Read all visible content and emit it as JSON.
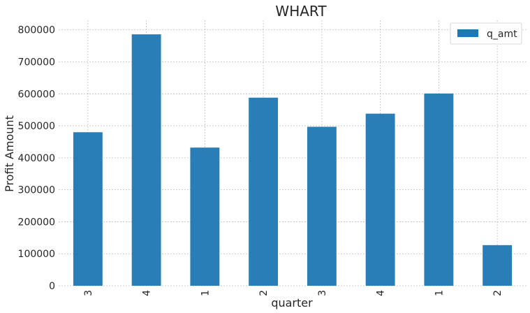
{
  "chart_data": {
    "type": "bar",
    "title": "WHART",
    "xlabel": "quarter",
    "ylabel": "Profit Amount",
    "categories": [
      "3",
      "4",
      "1",
      "2",
      "3",
      "4",
      "1",
      "2"
    ],
    "series": [
      {
        "name": "q_amt",
        "values": [
          480000,
          786000,
          432000,
          588000,
          497000,
          538000,
          601000,
          127000
        ]
      }
    ],
    "ylim": [
      0,
      830000
    ],
    "yticks": [
      "0",
      "100000",
      "200000",
      "300000",
      "400000",
      "500000",
      "600000",
      "700000",
      "800000"
    ],
    "grid": true,
    "legend_position": "top-right",
    "colors": {
      "bar": "#1f77b4"
    }
  }
}
